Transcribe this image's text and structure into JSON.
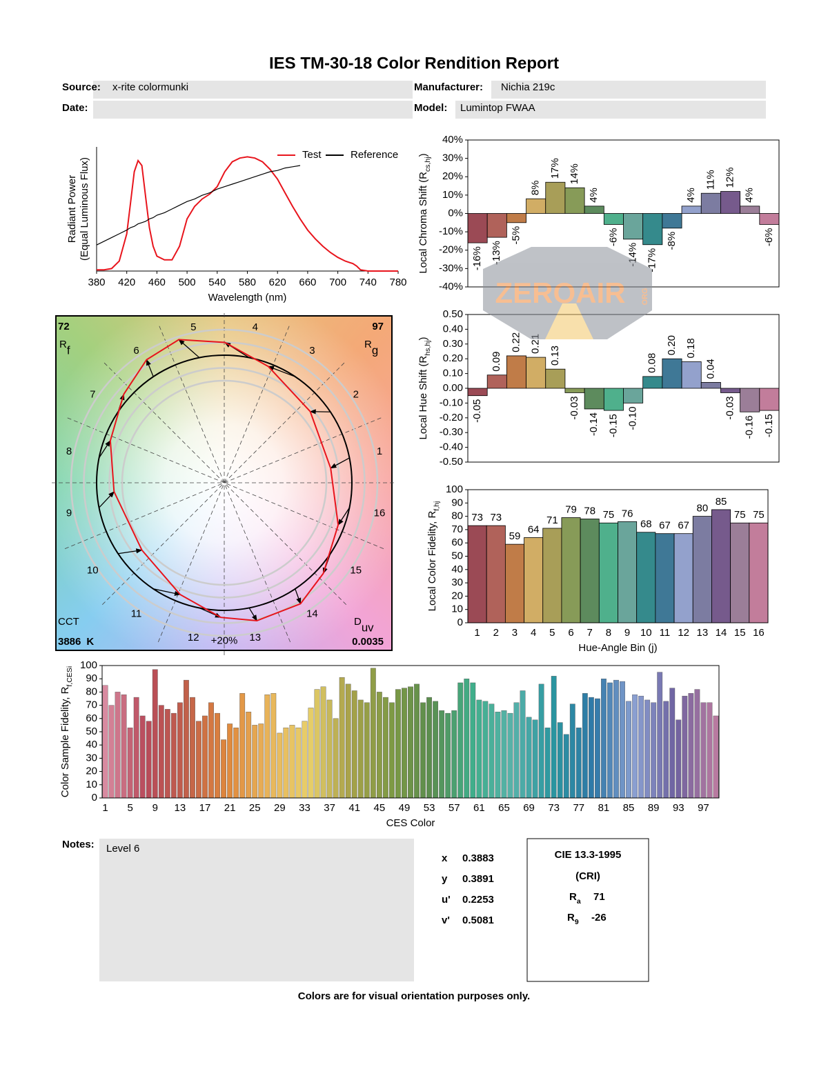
{
  "header": {
    "title": "IES TM-30-18 Color Rendition Report",
    "source_label": "Source:",
    "source": "x-rite colormunki",
    "manufacturer_label": "Manufacturer:",
    "manufacturer": "Nichia 219c",
    "date_label": "Date:",
    "model_label": "Model:",
    "model": "Lumintop FWAA"
  },
  "chart_data": [
    {
      "type": "line",
      "y_label": "Radiant Power",
      "y_label_note": "(Equal Luminous Flux)",
      "x_label": "Wavelength (nm)",
      "xlim": [
        380,
        780
      ],
      "xticks": [
        380,
        420,
        460,
        500,
        540,
        580,
        620,
        660,
        700,
        740,
        780
      ],
      "ylim": [
        0,
        1
      ],
      "x": [
        380,
        390,
        400,
        410,
        420,
        425,
        430,
        435,
        440,
        445,
        450,
        455,
        460,
        470,
        480,
        490,
        500,
        510,
        520,
        530,
        540,
        550,
        560,
        570,
        580,
        590,
        600,
        610,
        620,
        630,
        640,
        650,
        660,
        670,
        680,
        690,
        700,
        710,
        720,
        725,
        730,
        740,
        750,
        760,
        770,
        780
      ],
      "series": [
        {
          "name": "Test",
          "color": "#e8141c",
          "values": [
            0.01,
            0.01,
            0.02,
            0.08,
            0.3,
            0.55,
            0.8,
            0.89,
            0.85,
            0.6,
            0.35,
            0.2,
            0.12,
            0.09,
            0.09,
            0.2,
            0.42,
            0.52,
            0.58,
            0.62,
            0.68,
            0.8,
            0.88,
            0.91,
            0.92,
            0.91,
            0.88,
            0.82,
            0.74,
            0.63,
            0.52,
            0.42,
            0.33,
            0.26,
            0.2,
            0.15,
            0.11,
            0.08,
            0.06,
            0.04,
            0.01,
            0,
            0,
            0,
            0,
            0
          ]
        },
        {
          "name": "Reference",
          "color": "#000000",
          "values": [
            0.21,
            0.24,
            0.27,
            0.3,
            0.33,
            0.35,
            0.36,
            0.38,
            0.39,
            0.4,
            0.42,
            0.43,
            0.45,
            0.47,
            0.5,
            0.53,
            0.56,
            0.58,
            0.61,
            0.63,
            0.66,
            0.68,
            0.7,
            0.72,
            0.74,
            0.76,
            0.78,
            0.8,
            0.81,
            0.83,
            0.84,
            0.85,
            null,
            null,
            null,
            null,
            null,
            null,
            null,
            null,
            null,
            null,
            null,
            null,
            null,
            null
          ]
        }
      ]
    },
    {
      "type": "bar",
      "data_labels": "rotated",
      "y_label": {
        "text": "Local Chroma Shift (R",
        "sub": "cs,hj",
        "end": ")"
      },
      "ylim": [
        -40,
        40
      ],
      "yticks": [
        {
          "value": -40,
          "label": "-40%"
        },
        {
          "value": -30,
          "label": "-30%"
        },
        {
          "value": -20,
          "label": "-20%"
        },
        {
          "value": -10,
          "label": "-10%"
        },
        {
          "value": 0,
          "label": "0%"
        },
        {
          "value": 10,
          "label": "10%"
        },
        {
          "value": 20,
          "label": "20%"
        },
        {
          "value": 30,
          "label": "30%"
        },
        {
          "value": 40,
          "label": "40%"
        }
      ],
      "values": [
        -16,
        -13,
        -5,
        8,
        17,
        14,
        4,
        -6,
        -14,
        -17,
        -8,
        4,
        11,
        12,
        4,
        -6
      ],
      "value_labels": [
        "-16%",
        "-13%",
        "-5%",
        "8%",
        "17%",
        "14%",
        "4%",
        "-6%",
        "-14%",
        "-17%",
        "-8%",
        "4%",
        "11%",
        "12%",
        "4%",
        "-6%"
      ],
      "colors": [
        "#9b4a55",
        "#b0625a",
        "#c07c48",
        "#d1ad65",
        "#a89e58",
        "#879b58",
        "#5d8b5d",
        "#4fb08c",
        "#6aa59b",
        "#358a8c",
        "#3f7896",
        "#93a1cc",
        "#7c7ca1",
        "#765a8c",
        "#9b7e98",
        "#c27d9b"
      ]
    },
    {
      "type": "bar",
      "data_labels": "rotated",
      "y_label": {
        "text": "Local Hue Shift (R",
        "sub": "hs,hj",
        "end": ")"
      },
      "ylim": [
        -0.5,
        0.5
      ],
      "yticks": [
        {
          "value": -0.5,
          "label": "-0.50"
        },
        {
          "value": -0.4,
          "label": "-0.40"
        },
        {
          "value": -0.3,
          "label": "-0.30"
        },
        {
          "value": -0.2,
          "label": "-0.20"
        },
        {
          "value": -0.1,
          "label": "-0.10"
        },
        {
          "value": 0,
          "label": "0.00"
        },
        {
          "value": 0.1,
          "label": "0.10"
        },
        {
          "value": 0.2,
          "label": "0.20"
        },
        {
          "value": 0.3,
          "label": "0.30"
        },
        {
          "value": 0.4,
          "label": "0.40"
        },
        {
          "value": 0.5,
          "label": "0.50"
        }
      ],
      "values": [
        -0.05,
        0.09,
        0.22,
        0.21,
        0.13,
        -0.03,
        -0.14,
        -0.15,
        -0.1,
        0.08,
        0.2,
        0.18,
        0.04,
        -0.03,
        -0.16,
        -0.15
      ],
      "value_labels": [
        "-0.05",
        "0.09",
        "0.22",
        "0.21",
        "0.13",
        "-0.03",
        "-0.14",
        "-0.15",
        "-0.10",
        "0.08",
        "0.20",
        "0.18",
        "0.04",
        "-0.03",
        "-0.16",
        "-0.15"
      ],
      "colors": [
        "#9b4a55",
        "#b0625a",
        "#c07c48",
        "#d1ad65",
        "#a89e58",
        "#879b58",
        "#5d8b5d",
        "#4fb08c",
        "#6aa59b",
        "#358a8c",
        "#3f7896",
        "#93a1cc",
        "#7c7ca1",
        "#765a8c",
        "#9b7e98",
        "#c27d9b"
      ]
    },
    {
      "type": "bar",
      "data_labels": "above",
      "y_label": {
        "text": "Local Color Fidelity, R",
        "sub": "f,hj"
      },
      "x_label": "Hue-Angle Bin (j)",
      "ylim": [
        0,
        100
      ],
      "yticks": [
        0,
        10,
        20,
        30,
        40,
        50,
        60,
        70,
        80,
        90,
        100
      ],
      "categories": [
        1,
        2,
        3,
        4,
        5,
        6,
        7,
        8,
        9,
        10,
        11,
        12,
        13,
        14,
        15,
        16
      ],
      "values": [
        73,
        73,
        59,
        64,
        71,
        79,
        78,
        75,
        76,
        68,
        67,
        67,
        80,
        85,
        75,
        75
      ],
      "colors": [
        "#9b4a55",
        "#b0625a",
        "#c07c48",
        "#d1ad65",
        "#a89e58",
        "#879b58",
        "#5d8b5d",
        "#4fb08c",
        "#6aa59b",
        "#358a8c",
        "#3f7896",
        "#93a1cc",
        "#7c7ca1",
        "#765a8c",
        "#9b7e98",
        "#c27d9b"
      ]
    },
    {
      "type": "bar",
      "y_label": {
        "text": "Color Sample Fidelity, R",
        "sub": "f,CESi"
      },
      "x_label": "CES Color",
      "ylim": [
        0,
        100
      ],
      "yticks": [
        0,
        10,
        20,
        30,
        40,
        50,
        60,
        70,
        80,
        90,
        100
      ],
      "categories": [
        1,
        null,
        null,
        null,
        5,
        null,
        null,
        null,
        9,
        null,
        null,
        null,
        13,
        null,
        null,
        null,
        17,
        null,
        null,
        null,
        21,
        null,
        null,
        null,
        25,
        null,
        null,
        null,
        29,
        null,
        null,
        null,
        33,
        null,
        null,
        null,
        37,
        null,
        null,
        null,
        41,
        null,
        null,
        null,
        45,
        null,
        null,
        null,
        49,
        null,
        null,
        null,
        53,
        null,
        null,
        null,
        57,
        null,
        null,
        null,
        61,
        null,
        null,
        null,
        65,
        null,
        null,
        null,
        69,
        null,
        null,
        null,
        73,
        null,
        null,
        null,
        77,
        null,
        null,
        null,
        81,
        null,
        null,
        null,
        85,
        null,
        null,
        null,
        89,
        null,
        null,
        null,
        93,
        null,
        null,
        null,
        97,
        null,
        null
      ],
      "values": [
        85,
        70,
        80,
        78,
        53,
        76,
        62,
        58,
        97,
        70,
        67,
        64,
        72,
        89,
        76,
        58,
        62,
        72,
        64,
        44,
        56,
        53,
        79,
        65,
        55,
        56,
        78,
        79,
        49,
        53,
        55,
        53,
        58,
        68,
        82,
        84,
        74,
        60,
        91,
        86,
        81,
        74,
        72,
        98,
        80,
        76,
        72,
        82,
        83,
        84,
        86,
        72,
        76,
        73,
        66,
        64,
        66,
        87,
        90,
        87,
        74,
        73,
        71,
        65,
        66,
        64,
        72,
        81,
        61,
        59,
        86,
        53,
        92,
        57,
        48,
        71,
        53,
        79,
        76,
        75,
        90,
        87,
        89,
        88,
        73,
        78,
        77,
        74,
        72,
        95,
        73,
        83,
        59,
        77,
        79,
        82,
        72,
        72,
        62
      ],
      "colors": [
        "#d88aa0",
        "#b84a5a",
        "#c2604a",
        "#e0883c",
        "#e8b45a",
        "#e8cf6a",
        "#a8a24a",
        "#7f9a44",
        "#5b8e4e",
        "#3fae8a",
        "#58b2aa",
        "#2a96a0",
        "#2f78a8",
        "#8aa0d2",
        "#6e62a0",
        "#b87aa0"
      ]
    },
    {
      "type": "vector",
      "rf": 72,
      "rf_label": {
        "text": "R",
        "sub": "f"
      },
      "rg": 97,
      "rg_label": {
        "text": "R",
        "sub": "g"
      },
      "cct_label": "CCT",
      "cct": 3886,
      "cct_unit": "K",
      "duv_label": {
        "text": "D",
        "sub": "uv"
      },
      "duv": 0.0035,
      "bin_labels": [
        1,
        2,
        3,
        4,
        5,
        6,
        7,
        8,
        9,
        10,
        11,
        12,
        13,
        14,
        15,
        16
      ],
      "ring_label": "+20%",
      "test_color": "#e8141c"
    }
  ],
  "notes": {
    "label": "Notes:",
    "text": "Level 6"
  },
  "chromaticity": [
    {
      "label": "x",
      "value": 0.3883
    },
    {
      "label": "y",
      "value": 0.3891
    },
    {
      "label": "u'",
      "value": 0.2253
    },
    {
      "label": "v'",
      "value": 0.5081
    }
  ],
  "cri": {
    "title": "CIE 13.3-1995",
    "subtitle": "(CRI)",
    "ra_label": {
      "text": "R",
      "sub": "a"
    },
    "ra": 71,
    "r9_label": {
      "text": "R",
      "sub": "9"
    },
    "r9": -26
  },
  "footer": "Colors are for visual orientation purposes only.",
  "watermark": {
    "text": "ZEROAIR",
    "suffix": "ORG"
  }
}
